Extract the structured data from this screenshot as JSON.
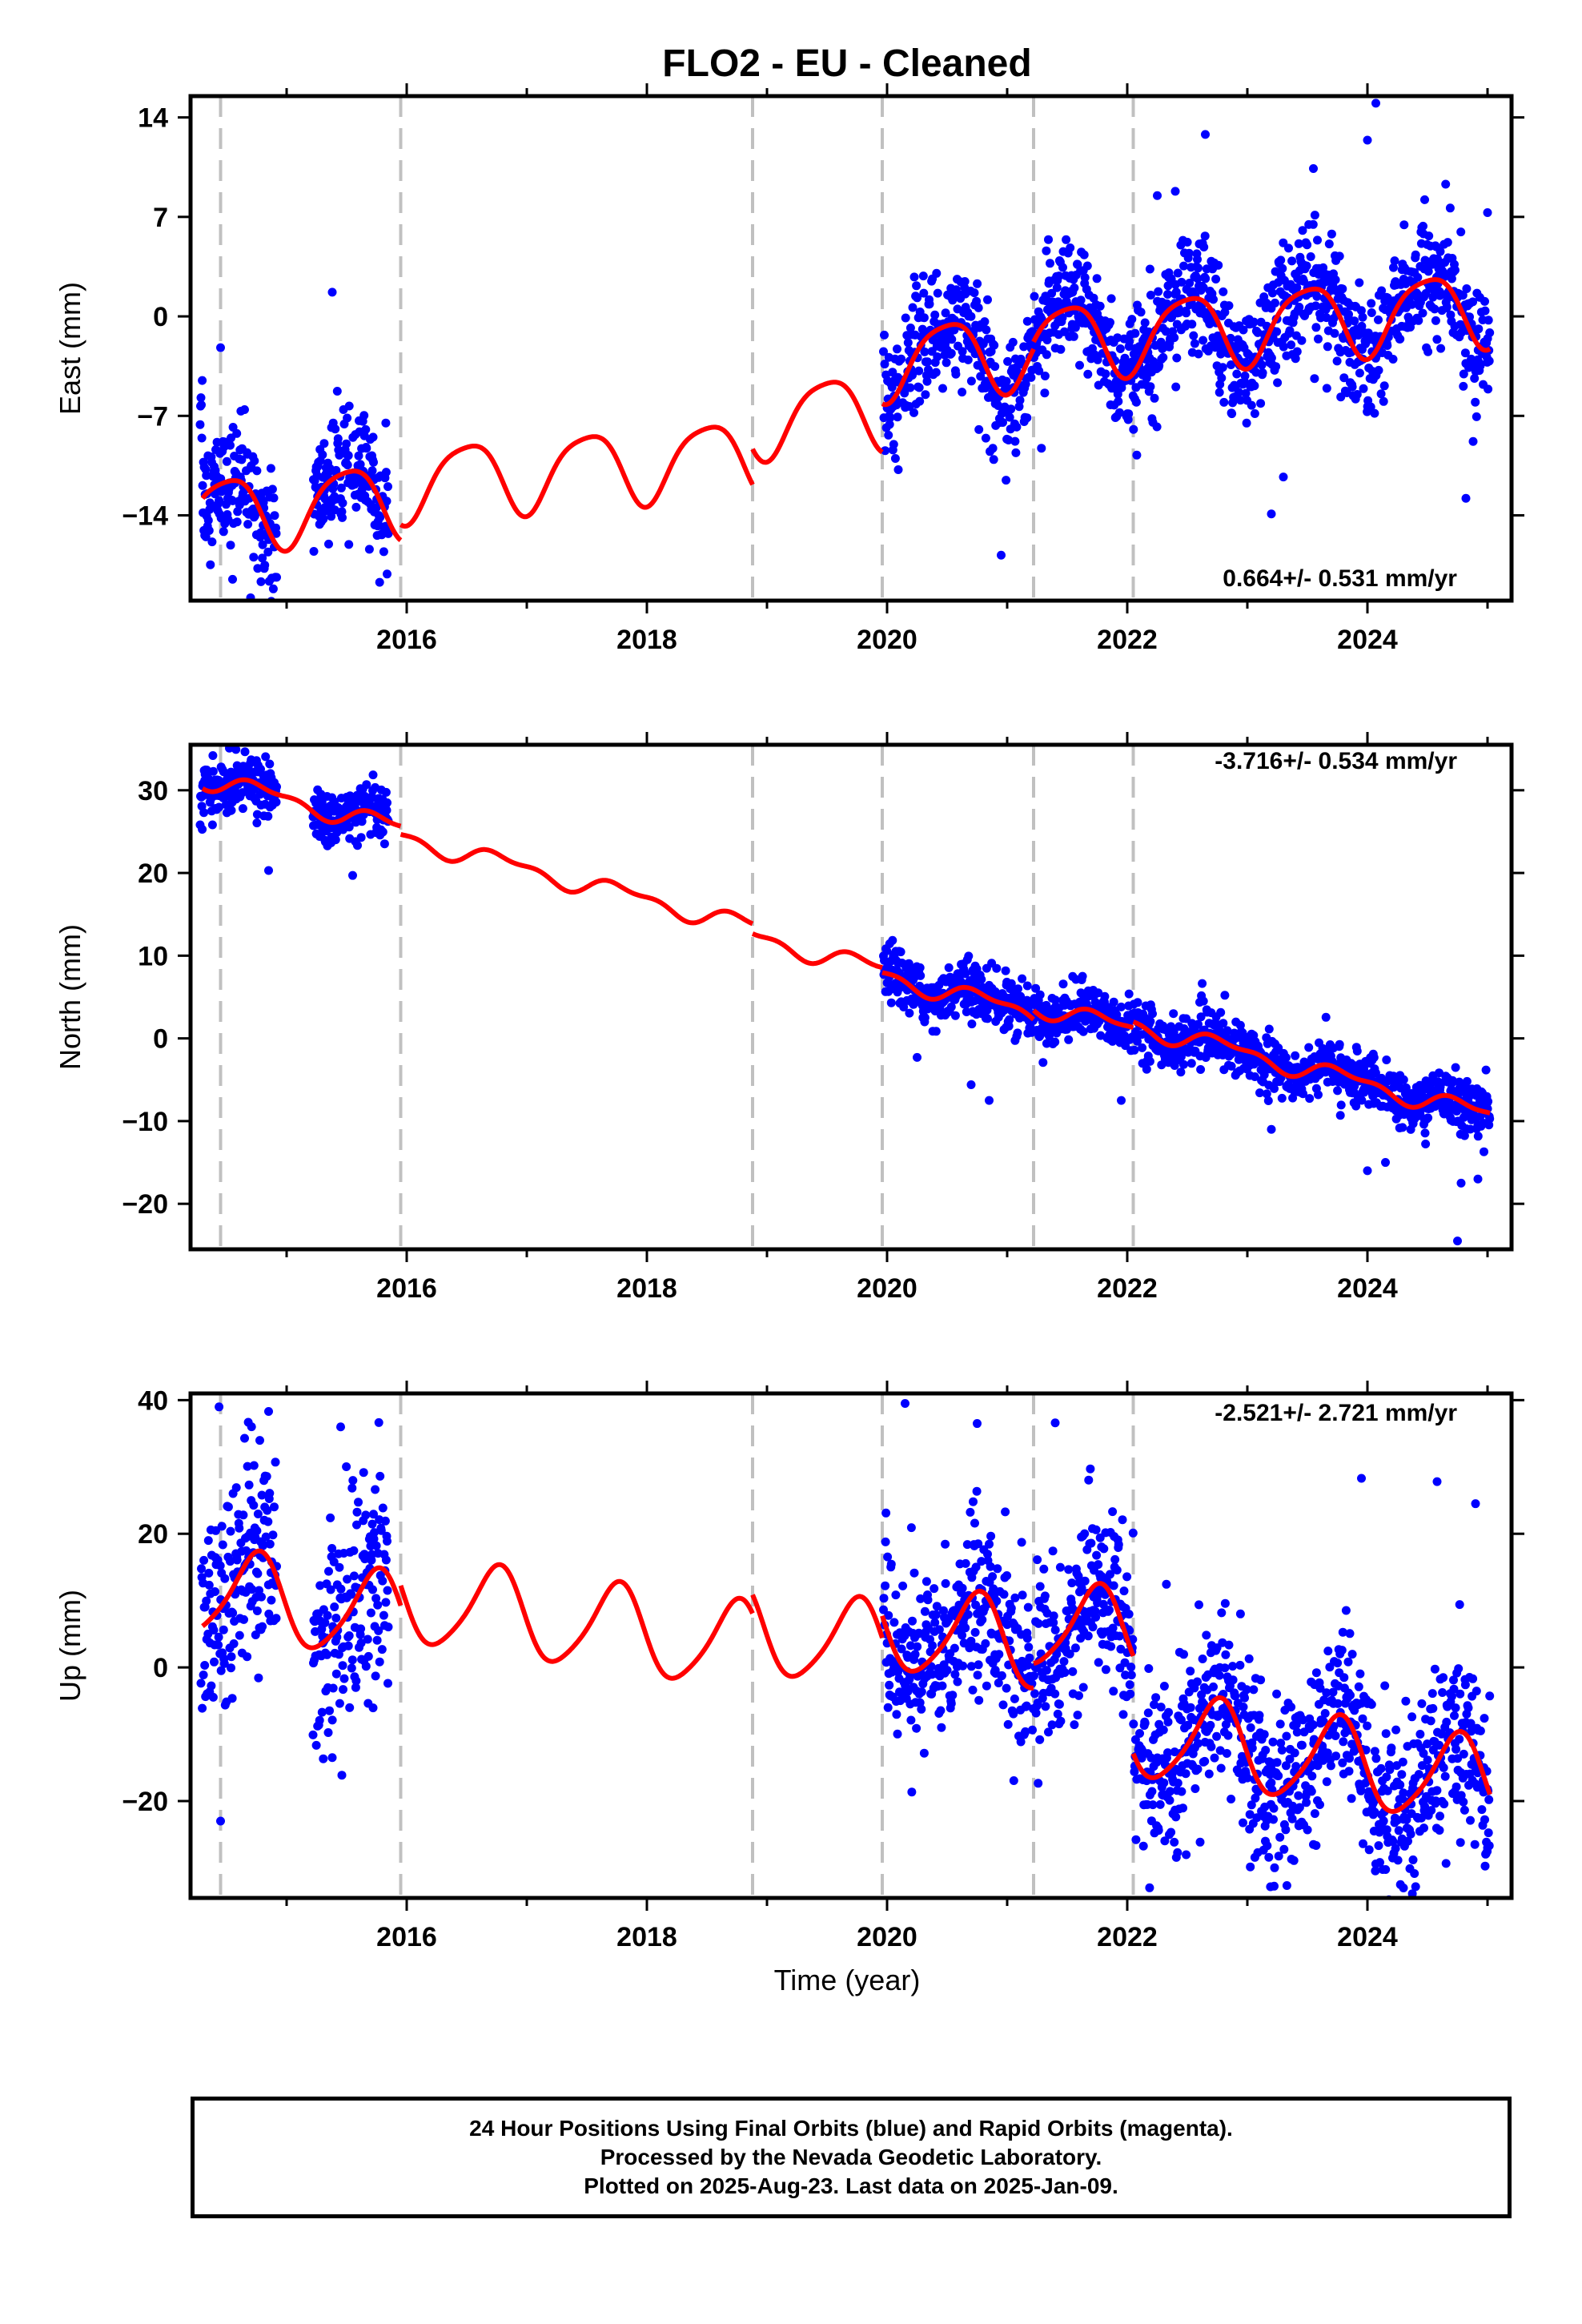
{
  "title": "FLO2  - EU - Cleaned",
  "xlabel": "Time (year)",
  "footer": {
    "line1": "24 Hour Positions Using Final Orbits (blue) and Rapid Orbits (magenta).",
    "line2": "Processed by the Nevada Geodetic Laboratory.",
    "line3": "Plotted on 2025-Aug-23. Last data on 2025-Jan-09."
  },
  "colors": {
    "points": "#0000ff",
    "model": "#ff0000",
    "breaks": "#c0c0c0",
    "axes": "#000000"
  },
  "chart_data": [
    {
      "type": "scatter",
      "panel": "east",
      "ylabel": "East (mm)",
      "xlim": [
        2014.2,
        2025.2
      ],
      "ylim": [
        -20,
        15.5
      ],
      "xticks": [
        2016,
        2018,
        2020,
        2022,
        2024
      ],
      "yticks": [
        -14,
        -7,
        0,
        7,
        14
      ],
      "rate": "0.664+/- 0.531 mm/yr",
      "breaks": [
        2014.45,
        2015.95,
        2018.88,
        2019.96,
        2021.22,
        2022.05
      ],
      "model_segments": [
        {
          "x0": 2014.3,
          "x1": 2015.95,
          "a": -13.9,
          "b": 0.664,
          "amp1": 2.6,
          "ph1": 0.25,
          "amp2": 0.5,
          "ph2": 0.1
        },
        {
          "x0": 2015.95,
          "x1": 2018.88,
          "a": -12.8,
          "b": 0.664,
          "amp1": 2.6,
          "ph1": 0.25,
          "amp2": 0.5,
          "ph2": 0.1
        },
        {
          "x0": 2018.88,
          "x1": 2019.96,
          "a": -10.3,
          "b": 0.664,
          "amp1": 2.6,
          "ph1": 0.25,
          "amp2": 0.5,
          "ph2": 0.1
        },
        {
          "x0": 2019.96,
          "x1": 2021.22,
          "a": -6.9,
          "b": 0.664,
          "amp1": 2.6,
          "ph1": 0.25,
          "amp2": 0.5,
          "ph2": 0.1
        },
        {
          "x0": 2021.22,
          "x1": 2022.05,
          "a": -6.4,
          "b": 0.664,
          "amp1": 2.6,
          "ph1": 0.25,
          "amp2": 0.5,
          "ph2": 0.1
        },
        {
          "x0": 2022.05,
          "x1": 2025.02,
          "a": -6.4,
          "b": 0.664,
          "amp1": 2.6,
          "ph1": 0.25,
          "amp2": 0.5,
          "ph2": 0.1
        }
      ],
      "data_spans": [
        {
          "x0": 2014.28,
          "x1": 2014.92,
          "sd": 2.0
        },
        {
          "x0": 2015.22,
          "x1": 2015.85,
          "sd": 2.0
        },
        {
          "x0": 2019.97,
          "x1": 2025.02,
          "sd": 2.1
        }
      ],
      "outliers": [
        [
          2014.45,
          -2.2
        ],
        [
          2014.55,
          -18.5
        ],
        [
          2014.7,
          -19.8
        ],
        [
          2015.38,
          1.7
        ],
        [
          2020.95,
          -16.8
        ],
        [
          2022.25,
          8.5
        ],
        [
          2022.4,
          8.8
        ],
        [
          2022.65,
          12.8
        ],
        [
          2023.2,
          -13.9
        ],
        [
          2023.3,
          -11.3
        ],
        [
          2023.55,
          10.4
        ],
        [
          2024.0,
          12.4
        ],
        [
          2024.07,
          15.0
        ],
        [
          2024.82,
          -12.8
        ],
        [
          2024.88,
          -8.8
        ],
        [
          2025.0,
          7.3
        ]
      ]
    },
    {
      "type": "scatter",
      "panel": "north",
      "ylabel": "North (mm)",
      "xlim": [
        2014.2,
        2025.2
      ],
      "ylim": [
        -25.5,
        35.5
      ],
      "xticks": [
        2016,
        2018,
        2020,
        2022,
        2024
      ],
      "yticks": [
        -20,
        -10,
        0,
        10,
        20,
        30
      ],
      "rate": "-3.716+/- 0.534 mm/yr",
      "breaks": [
        2014.45,
        2015.95,
        2018.88,
        2019.96,
        2021.22,
        2022.05
      ],
      "model_segments": [
        {
          "x0": 2014.3,
          "x1": 2015.95,
          "a": 31.5,
          "b": -3.716,
          "amp1": 1.0,
          "ph1": 0.55,
          "amp2": 0.5,
          "ph2": 0.0
        },
        {
          "x0": 2015.95,
          "x1": 2018.88,
          "a": 30.5,
          "b": -3.716,
          "amp1": 1.0,
          "ph1": 0.55,
          "amp2": 0.5,
          "ph2": 0.0
        },
        {
          "x0": 2018.88,
          "x1": 2019.96,
          "a": 29.3,
          "b": -3.716,
          "amp1": 1.0,
          "ph1": 0.55,
          "amp2": 0.5,
          "ph2": 0.0
        },
        {
          "x0": 2019.96,
          "x1": 2021.22,
          "a": 28.7,
          "b": -3.716,
          "amp1": 1.0,
          "ph1": 0.55,
          "amp2": 0.5,
          "ph2": 0.0
        },
        {
          "x0": 2021.22,
          "x1": 2022.05,
          "a": 29.8,
          "b": -3.716,
          "amp1": 1.0,
          "ph1": 0.55,
          "amp2": 0.5,
          "ph2": 0.0
        },
        {
          "x0": 2022.05,
          "x1": 2025.02,
          "a": 30.5,
          "b": -3.716,
          "amp1": 1.0,
          "ph1": 0.55,
          "amp2": 0.5,
          "ph2": 0.0
        }
      ],
      "data_spans": [
        {
          "x0": 2014.28,
          "x1": 2014.92,
          "sd": 1.5
        },
        {
          "x0": 2015.22,
          "x1": 2015.85,
          "sd": 1.6
        },
        {
          "x0": 2019.97,
          "x1": 2025.02,
          "sd": 1.6
        }
      ],
      "outliers": [
        [
          2014.85,
          20.3
        ],
        [
          2015.55,
          19.7
        ],
        [
          2020.25,
          -2.3
        ],
        [
          2020.7,
          -5.6
        ],
        [
          2020.85,
          -7.5
        ],
        [
          2021.95,
          -7.5
        ],
        [
          2023.2,
          -11.0
        ],
        [
          2024.0,
          -16.0
        ],
        [
          2024.15,
          -15.0
        ],
        [
          2024.78,
          -17.5
        ],
        [
          2024.75,
          -24.5
        ],
        [
          2024.92,
          -17.0
        ]
      ]
    },
    {
      "type": "scatter",
      "panel": "up",
      "ylabel": "Up (mm)",
      "xlim": [
        2014.2,
        2025.2
      ],
      "ylim": [
        -34.5,
        41
      ],
      "xticks": [
        2016,
        2018,
        2020,
        2022,
        2024
      ],
      "yticks": [
        -20,
        0,
        20,
        40
      ],
      "rate": "-2.521+/- 2.721 mm/yr",
      "breaks": [
        2014.45,
        2015.95,
        2018.88,
        2019.96,
        2021.22,
        2022.05
      ],
      "model_segments": [
        {
          "x0": 2014.3,
          "x1": 2015.95,
          "a": 11.4,
          "b": -2.521,
          "amp1": 6.5,
          "ph1": 0.5,
          "amp2": 1.0,
          "ph2": 0.2
        },
        {
          "x0": 2015.95,
          "x1": 2018.88,
          "a": 14.4,
          "b": -2.521,
          "amp1": 6.5,
          "ph1": 0.5,
          "amp2": 1.0,
          "ph2": 0.2
        },
        {
          "x0": 2018.88,
          "x1": 2019.96,
          "a": 17.2,
          "b": -2.521,
          "amp1": 6.5,
          "ph1": 0.5,
          "amp2": 1.0,
          "ph2": 0.2
        },
        {
          "x0": 2019.96,
          "x1": 2021.22,
          "a": 20.5,
          "b": -2.521,
          "amp1": 6.5,
          "ph1": 0.5,
          "amp2": 1.0,
          "ph2": 0.2
        },
        {
          "x0": 2021.22,
          "x1": 2022.05,
          "a": 24.2,
          "b": -2.521,
          "amp1": 6.5,
          "ph1": 0.5,
          "amp2": 1.0,
          "ph2": 0.2
        },
        {
          "x0": 2022.05,
          "x1": 2025.02,
          "a": 9.6,
          "b": -2.521,
          "amp1": 6.5,
          "ph1": 0.5,
          "amp2": 1.0,
          "ph2": 0.2
        }
      ],
      "data_spans": [
        {
          "x0": 2014.28,
          "x1": 2014.92,
          "sd": 8.0
        },
        {
          "x0": 2015.22,
          "x1": 2015.85,
          "sd": 8.0
        },
        {
          "x0": 2019.97,
          "x1": 2025.02,
          "sd": 6.5
        }
      ],
      "outliers": [
        [
          2014.45,
          -23.0
        ],
        [
          2014.85,
          38.3
        ],
        [
          2015.38,
          -13.5
        ],
        [
          2015.45,
          36.0
        ],
        [
          2020.15,
          39.5
        ],
        [
          2020.75,
          36.5
        ],
        [
          2021.4,
          36.6
        ],
        [
          2023.15,
          -26.0
        ],
        [
          2023.55,
          -26.5
        ],
        [
          2023.95,
          28.3
        ],
        [
          2024.38,
          -28.8
        ],
        [
          2024.3,
          -33.0
        ],
        [
          2024.58,
          27.8
        ],
        [
          2024.9,
          24.5
        ],
        [
          2025.0,
          -27.0
        ]
      ]
    }
  ]
}
